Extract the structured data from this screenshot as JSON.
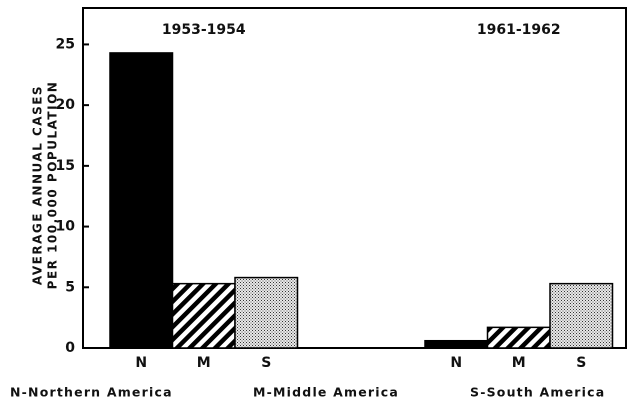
{
  "chart_data": {
    "type": "bar",
    "categories": [
      "1953-1954",
      "1961-1962"
    ],
    "series": [
      {
        "name": "N",
        "color": "#000000",
        "pattern": "solid",
        "values": [
          24.3,
          0.6
        ]
      },
      {
        "name": "M",
        "color": "#000000",
        "pattern": "hatch",
        "values": [
          5.3,
          1.7
        ]
      },
      {
        "name": "S",
        "color": "#000000",
        "pattern": "dots",
        "values": [
          5.8,
          5.3
        ]
      }
    ],
    "y_label": [
      "AVERAGE ANNUAL CASES",
      "PER 100,000 POPULATION"
    ],
    "footnotes": [
      "N-Northern America",
      "M-Middle America",
      "S-South America"
    ],
    "ylim": [
      0,
      28
    ],
    "yticks": [
      0,
      5,
      10,
      15,
      20,
      25
    ],
    "grid": false
  }
}
